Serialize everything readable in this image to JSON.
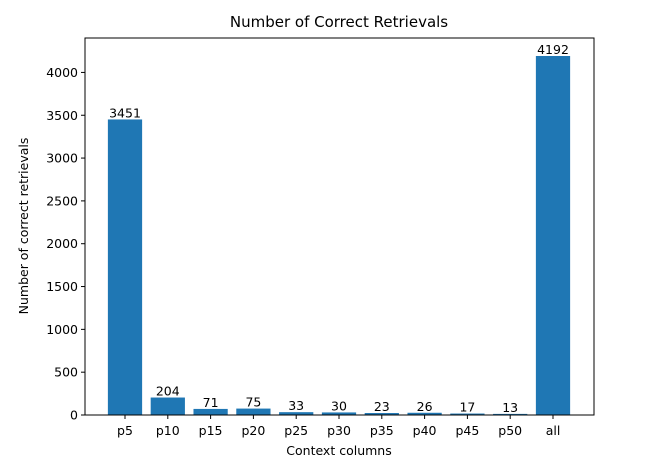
{
  "chart_data": {
    "type": "bar",
    "title": "Number of Correct Retrievals",
    "xlabel": "Context columns",
    "ylabel": "Number of correct retrievals",
    "categories": [
      "p5",
      "p10",
      "p15",
      "p20",
      "p25",
      "p30",
      "p35",
      "p40",
      "p45",
      "p50",
      "all"
    ],
    "values": [
      3451,
      204,
      71,
      75,
      33,
      30,
      23,
      26,
      17,
      13,
      4192
    ],
    "data_labels": [
      "3451",
      "204",
      "71",
      "75",
      "33",
      "30",
      "23",
      "26",
      "17",
      "13",
      "4192"
    ],
    "yticks": [
      0,
      500,
      1000,
      1500,
      2000,
      2500,
      3000,
      3500,
      4000
    ],
    "ytick_labels": [
      "0",
      "500",
      "1000",
      "1500",
      "2000",
      "2500",
      "3000",
      "3500",
      "4000"
    ],
    "ylim": [
      0,
      4402
    ],
    "grid": false,
    "legend": "none",
    "bar_color": "#1f77b4"
  }
}
